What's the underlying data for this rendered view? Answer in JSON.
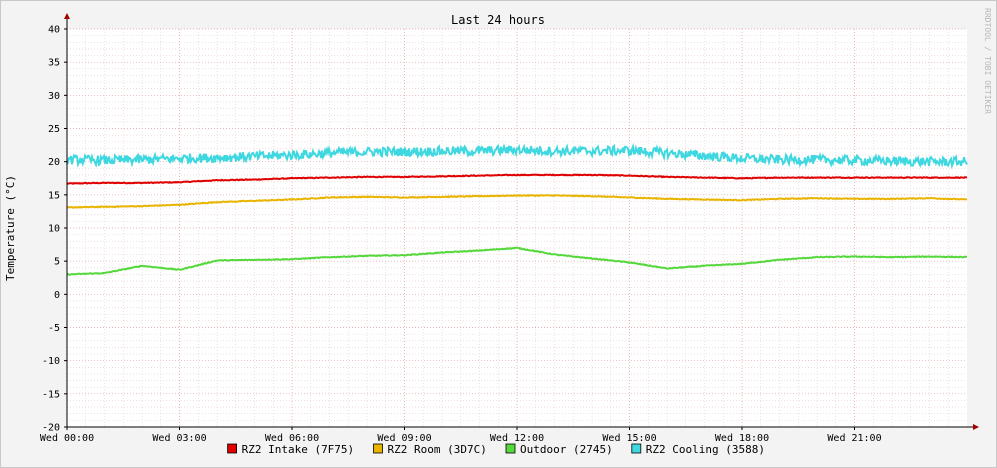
{
  "chart_data": {
    "type": "line",
    "title": "Last 24 hours",
    "ylabel": "Temperature (°C)",
    "watermark": "RRDTOOL / TOBI OETIKER",
    "ylim": [
      -20,
      40
    ],
    "yticks": [
      -20,
      -15,
      -10,
      -5,
      0,
      5,
      10,
      15,
      20,
      25,
      30,
      35,
      40
    ],
    "xlim": [
      0,
      24
    ],
    "xticks": [
      {
        "hour": 0,
        "label": "Wed 00:00"
      },
      {
        "hour": 3,
        "label": "Wed 03:00"
      },
      {
        "hour": 6,
        "label": "Wed 06:00"
      },
      {
        "hour": 9,
        "label": "Wed 09:00"
      },
      {
        "hour": 12,
        "label": "Wed 12:00"
      },
      {
        "hour": 15,
        "label": "Wed 15:00"
      },
      {
        "hour": 18,
        "label": "Wed 18:00"
      },
      {
        "hour": 21,
        "label": "Wed 21:00"
      }
    ],
    "grid": true,
    "legend_position": "bottom",
    "x": [
      0,
      1,
      2,
      3,
      4,
      5,
      6,
      7,
      8,
      9,
      10,
      11,
      12,
      13,
      14,
      15,
      16,
      17,
      18,
      19,
      20,
      21,
      22,
      23,
      24
    ],
    "series": [
      {
        "name": "RZ2 Intake (7F75)",
        "color": "#e00000",
        "values": [
          16.7,
          16.8,
          16.8,
          16.9,
          17.2,
          17.3,
          17.5,
          17.6,
          17.7,
          17.7,
          17.8,
          17.9,
          18.0,
          18.0,
          18.0,
          17.9,
          17.7,
          17.6,
          17.5,
          17.6,
          17.6,
          17.6,
          17.6,
          17.6,
          17.6
        ]
      },
      {
        "name": "RZ2 Room (3D7C)",
        "color": "#e8b400",
        "values": [
          13.1,
          13.2,
          13.3,
          13.5,
          13.9,
          14.1,
          14.3,
          14.6,
          14.7,
          14.6,
          14.7,
          14.8,
          14.9,
          14.9,
          14.8,
          14.6,
          14.4,
          14.3,
          14.2,
          14.4,
          14.5,
          14.4,
          14.4,
          14.5,
          14.3
        ]
      },
      {
        "name": "Outdoor (2745)",
        "color": "#55d83c",
        "values": [
          3.0,
          3.2,
          4.3,
          3.7,
          5.1,
          5.2,
          5.3,
          5.6,
          5.8,
          5.9,
          6.3,
          6.6,
          7.0,
          6.0,
          5.4,
          4.8,
          3.9,
          4.3,
          4.6,
          5.2,
          5.6,
          5.7,
          5.6,
          5.7,
          5.6
        ]
      },
      {
        "name": "RZ2 Cooling (3588)",
        "color": "#40d8e0",
        "values": [
          20.3,
          20.2,
          20.3,
          20.5,
          20.6,
          20.8,
          21.0,
          21.3,
          21.5,
          21.5,
          21.6,
          21.6,
          21.8,
          21.6,
          21.6,
          21.7,
          21.3,
          20.9,
          20.5,
          20.3,
          20.3,
          20.2,
          20.1,
          20.0,
          20.0
        ],
        "jitter": 0.7
      }
    ]
  }
}
